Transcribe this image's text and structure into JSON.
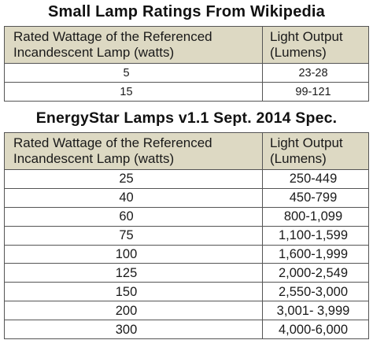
{
  "table1": {
    "title": "Small Lamp Ratings From Wikipedia",
    "header_col1_line1": "Rated Wattage of the Referenced",
    "header_col1_line2": "Incandescent Lamp (watts)",
    "header_col2_line1": "Light Output",
    "header_col2_line2": "(Lumens)",
    "rows": [
      {
        "watts": "5",
        "lumens": "23-28"
      },
      {
        "watts": "15",
        "lumens": "99-121"
      }
    ]
  },
  "table2": {
    "title": "EnergyStar Lamps v1.1 Sept. 2014 Spec.",
    "header_col1_line1": "Rated Wattage of the Referenced",
    "header_col1_line2": "Incandescent Lamp (watts)",
    "header_col2_line1": "Light Output",
    "header_col2_line2": "(Lumens)",
    "rows": [
      {
        "watts": "25",
        "lumens": "250-449"
      },
      {
        "watts": "40",
        "lumens": "450-799"
      },
      {
        "watts": "60",
        "lumens": "800-1,099"
      },
      {
        "watts": "75",
        "lumens": "1,100-1,599"
      },
      {
        "watts": "100",
        "lumens": "1,600-1,999"
      },
      {
        "watts": "125",
        "lumens": "2,000-2,549"
      },
      {
        "watts": "150",
        "lumens": "2,550-3,000"
      },
      {
        "watts": "200",
        "lumens": "3,001- 3,999"
      },
      {
        "watts": "300",
        "lumens": "4,000-6,000"
      }
    ]
  },
  "colors": {
    "header_background": "#ddd9c3",
    "border": "#555555",
    "text": "#111111"
  }
}
